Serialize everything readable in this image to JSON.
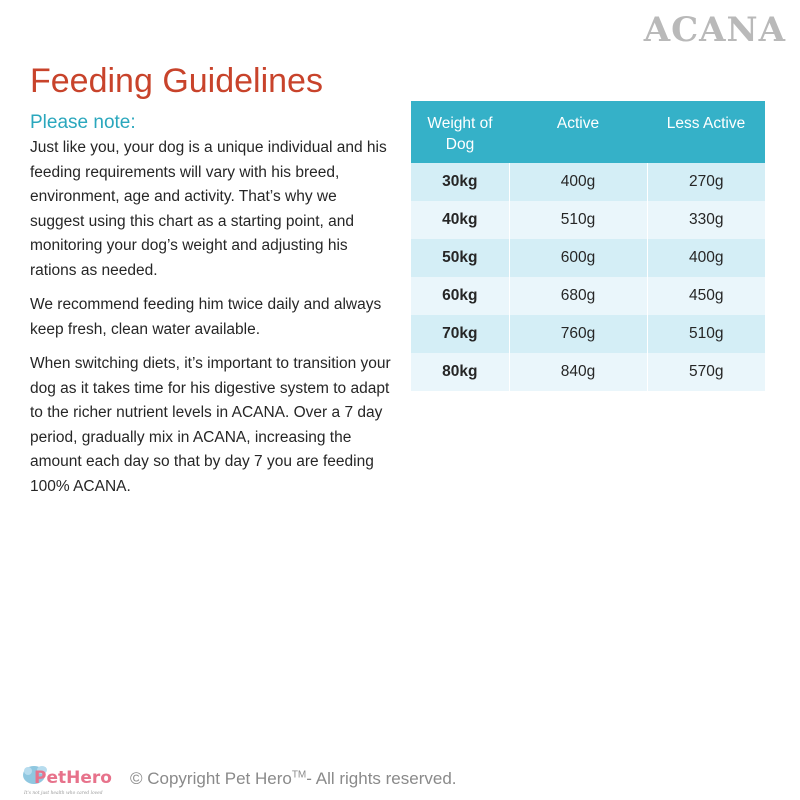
{
  "brand": "ACANA",
  "title": "Feeding Guidelines",
  "note_heading": "Please note:",
  "paragraphs": [
    "Just like you, your dog is a unique individual and his feeding requirements will vary with his breed, environment, age and activity. That’s why we suggest using this chart as a starting point, and monitoring your dog’s weight and adjusting his rations as needed.",
    "We recommend feeding him twice daily and always keep fresh, clean water available.",
    "When switching diets, it’s important to transition your dog as it takes time for his digestive system to adapt to the richer nutrient levels in ACANA. Over a 7 day period, gradually mix in ACANA, increasing the amount each day so that by day 7 you are feeding 100% ACANA."
  ],
  "table": {
    "headers": [
      "Weight of Dog",
      "Active",
      "Less Active"
    ],
    "rows": [
      [
        "30kg",
        "400g",
        "270g"
      ],
      [
        "40kg",
        "510g",
        "330g"
      ],
      [
        "50kg",
        "600g",
        "400g"
      ],
      [
        "60kg",
        "680g",
        "450g"
      ],
      [
        "70kg",
        "760g",
        "510g"
      ],
      [
        "80kg",
        "840g",
        "570g"
      ]
    ]
  },
  "footer": {
    "copyright_prefix": "© Copyright Pet Hero",
    "trademark": "TM",
    "copyright_suffix": "- All rights reserved.",
    "logo_text": "PetHero",
    "logo_tagline": "It's not just health who cared loved"
  },
  "colors": {
    "title": "#c8432b",
    "note_heading": "#2aa7bd",
    "table_header": "#35b1c8",
    "row_dark": "#d4eef6",
    "row_light": "#eaf6fb",
    "brand_gray": "#b9b9b9"
  }
}
